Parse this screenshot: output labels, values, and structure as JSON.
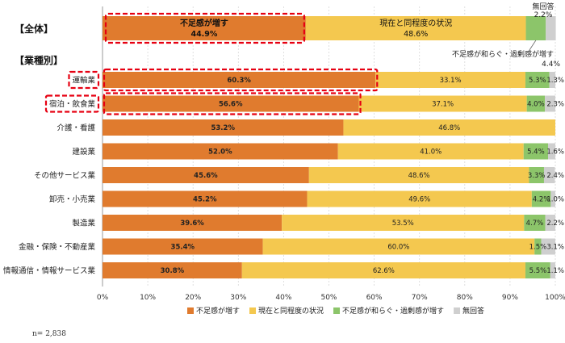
{
  "chart_data": {
    "type": "bar",
    "orientation": "horizontal",
    "stacked": true,
    "xlim": [
      0,
      100
    ],
    "xticks": [
      "0%",
      "10%",
      "20%",
      "30%",
      "40%",
      "50%",
      "60%",
      "70%",
      "80%",
      "90%",
      "100%"
    ],
    "colors": [
      "#e07b2e",
      "#f4c84f",
      "#8cc56a",
      "#cfcfcf"
    ],
    "legend": [
      "不足感が増す",
      "現在と同程度の状況",
      "不足感が和らぐ・過剰感が増す",
      "無回答"
    ],
    "legend_position": "bottom",
    "overall": {
      "header": "【全体】",
      "values": [
        44.9,
        48.6,
        4.4,
        2.2
      ],
      "labels": [
        "不足感が増す",
        "現在と同程度の状況",
        "不足感が和らぐ・過剰感が増す",
        "無回答"
      ],
      "value_labels": [
        "44.9%",
        "48.6%",
        "4.4%",
        "2.2%"
      ]
    },
    "section_header": "【業種別】",
    "categories": [
      "運輸業",
      "宿泊・飲食業",
      "介護・看護",
      "建設業",
      "その他サービス業",
      "卸売・小売業",
      "製造業",
      "金融・保険・不動産業",
      "情報通信・情報サービス業"
    ],
    "series": [
      {
        "name": "不足感が増す",
        "values": [
          60.3,
          56.6,
          53.2,
          52.0,
          45.6,
          45.2,
          39.6,
          35.4,
          30.8
        ]
      },
      {
        "name": "現在と同程度の状況",
        "values": [
          33.1,
          37.1,
          46.8,
          41.0,
          48.6,
          49.6,
          53.5,
          60.0,
          62.6
        ]
      },
      {
        "name": "不足感が和らぐ・過剰感が増す",
        "values": [
          5.3,
          4.0,
          0,
          5.4,
          3.3,
          4.2,
          4.7,
          1.5,
          5.5
        ]
      },
      {
        "name": "無回答",
        "values": [
          1.3,
          2.3,
          0,
          1.6,
          2.4,
          1.0,
          2.2,
          3.1,
          1.1
        ]
      }
    ],
    "highlighted_categories": [
      "運輸業",
      "宿泊・飲食業"
    ],
    "note": "n= 2,838"
  }
}
